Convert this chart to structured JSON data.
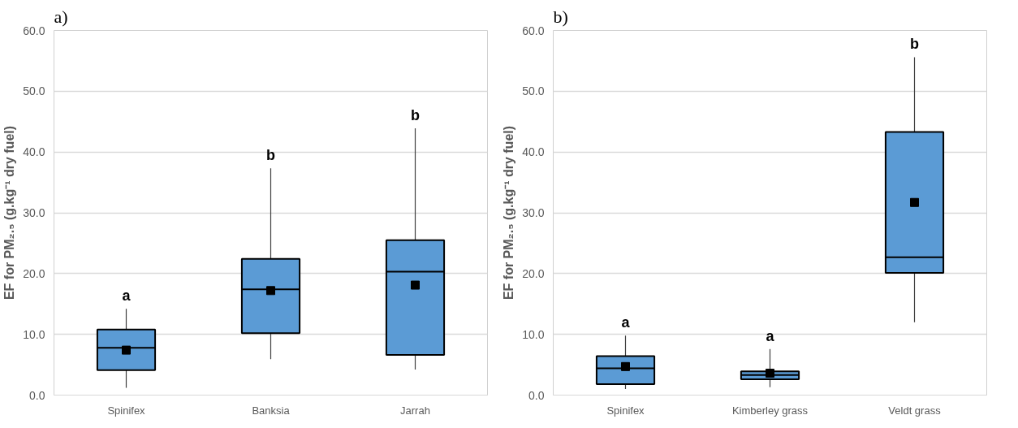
{
  "chart_data": [
    {
      "type": "box",
      "title": "a)",
      "ylabel": "EF for PM₂.₅ (g.kg⁻¹ dry fuel)",
      "categories": [
        "Spinifex",
        "Banksia",
        "Jarrah"
      ],
      "color": "#5b9bd5",
      "boxes": [
        {
          "low": 1.2,
          "q1": 4.1,
          "median": 7.8,
          "q3": 10.8,
          "high": 14.2,
          "mean": 7.4
        },
        {
          "low": 5.9,
          "q1": 10.2,
          "median": 17.4,
          "q3": 22.4,
          "high": 37.3,
          "mean": 17.2
        },
        {
          "low": 4.2,
          "q1": 6.6,
          "median": 20.3,
          "q3": 25.5,
          "high": 43.9,
          "mean": 18.1
        }
      ],
      "ylim": [
        0,
        60
      ],
      "yticks": [
        {
          "value": 0,
          "label": "0.0"
        },
        {
          "value": 10,
          "label": "10.0"
        },
        {
          "value": 20,
          "label": "20.0"
        },
        {
          "value": 30,
          "label": "30.0"
        },
        {
          "value": 40,
          "label": "40.0"
        },
        {
          "value": 50,
          "label": "50.0"
        },
        {
          "value": 60,
          "label": "60.0"
        }
      ],
      "grid": "y",
      "marker": "square",
      "annotations": [
        "a",
        "b",
        "b"
      ]
    },
    {
      "type": "box",
      "title": "b)",
      "ylabel": "EF for PM₂.₅ (g.kg⁻¹ dry fuel)",
      "categories": [
        "Spinifex",
        "Kimberley grass",
        "Veldt grass"
      ],
      "color": "#5b9bd5",
      "boxes": [
        {
          "low": 1.0,
          "q1": 1.8,
          "median": 4.4,
          "q3": 6.4,
          "high": 9.8,
          "mean": 4.7
        },
        {
          "low": 1.3,
          "q1": 2.6,
          "median": 3.3,
          "q3": 3.9,
          "high": 7.6,
          "mean": 3.6
        },
        {
          "low": 12.0,
          "q1": 20.1,
          "median": 22.7,
          "q3": 43.3,
          "high": 55.6,
          "mean": 31.7
        }
      ],
      "ylim": [
        0,
        60
      ],
      "yticks": [
        {
          "value": 0,
          "label": "0.0"
        },
        {
          "value": 10,
          "label": "10.0"
        },
        {
          "value": 20,
          "label": "20.0"
        },
        {
          "value": 30,
          "label": "30.0"
        },
        {
          "value": 40,
          "label": "40.0"
        },
        {
          "value": 50,
          "label": "50.0"
        },
        {
          "value": 60,
          "label": "60.0"
        }
      ],
      "grid": "y",
      "marker": "square",
      "annotations": [
        "a",
        "a",
        "b"
      ]
    }
  ]
}
